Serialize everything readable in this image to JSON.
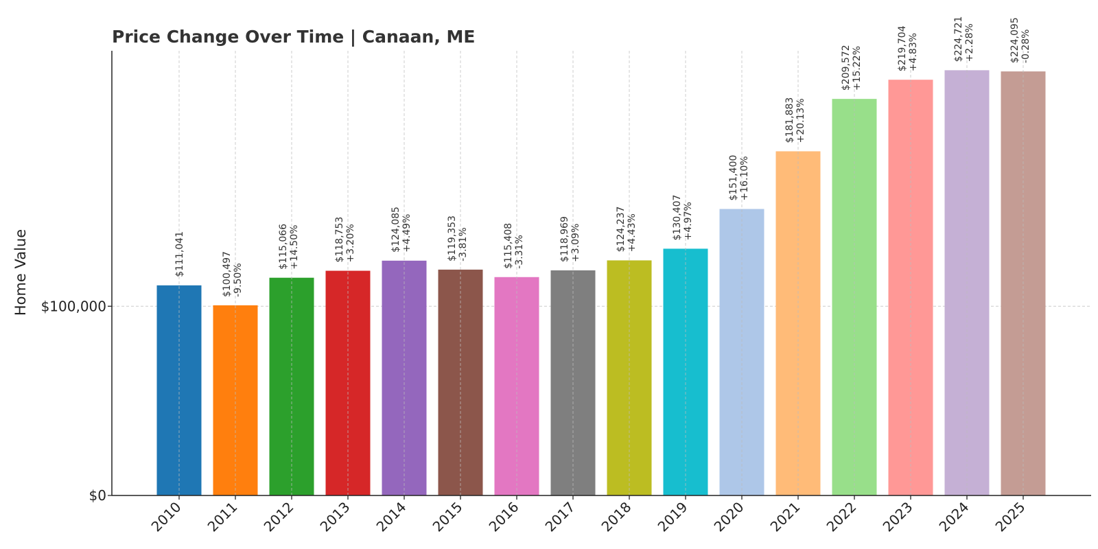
{
  "chart_data": {
    "type": "bar",
    "title": "Price Change Over Time | Canaan, ME",
    "xlabel": "",
    "ylabel": "Home Value",
    "ylim": [
      0,
      235000
    ],
    "yticks": [
      0,
      100000
    ],
    "ytick_labels": [
      "$0",
      "$100,000"
    ],
    "grid": true,
    "categories": [
      "2010",
      "2011",
      "2012",
      "2013",
      "2014",
      "2015",
      "2016",
      "2017",
      "2018",
      "2019",
      "2020",
      "2021",
      "2022",
      "2023",
      "2024",
      "2025"
    ],
    "values": [
      111041,
      100497,
      115066,
      118753,
      124085,
      119353,
      115408,
      118969,
      124237,
      130407,
      151400,
      181883,
      209572,
      219704,
      224721,
      224095
    ],
    "value_labels": [
      "$111,041",
      "$100,497",
      "$115,066",
      "$118,753",
      "$124,085",
      "$119,353",
      "$115,408",
      "$118,969",
      "$124,237",
      "$130,407",
      "$151,400",
      "$181,883",
      "$209,572",
      "$219,704",
      "$224,721",
      "$224,095"
    ],
    "change_labels": [
      "",
      "-9.50%",
      "+14.50%",
      "+3.20%",
      "+4.49%",
      "-3.81%",
      "-3.31%",
      "+3.09%",
      "+4.43%",
      "+4.97%",
      "+16.10%",
      "+20.13%",
      "+15.22%",
      "+4.83%",
      "+2.28%",
      "-0.28%"
    ],
    "colors": [
      "#1f77b4",
      "#ff7f0e",
      "#2ca02c",
      "#d62728",
      "#9467bd",
      "#8c564b",
      "#e377c2",
      "#7f7f7f",
      "#bcbd22",
      "#17becf",
      "#aec7e8",
      "#ffbb78",
      "#98df8a",
      "#ff9896",
      "#c5b0d5",
      "#c49c94"
    ]
  }
}
